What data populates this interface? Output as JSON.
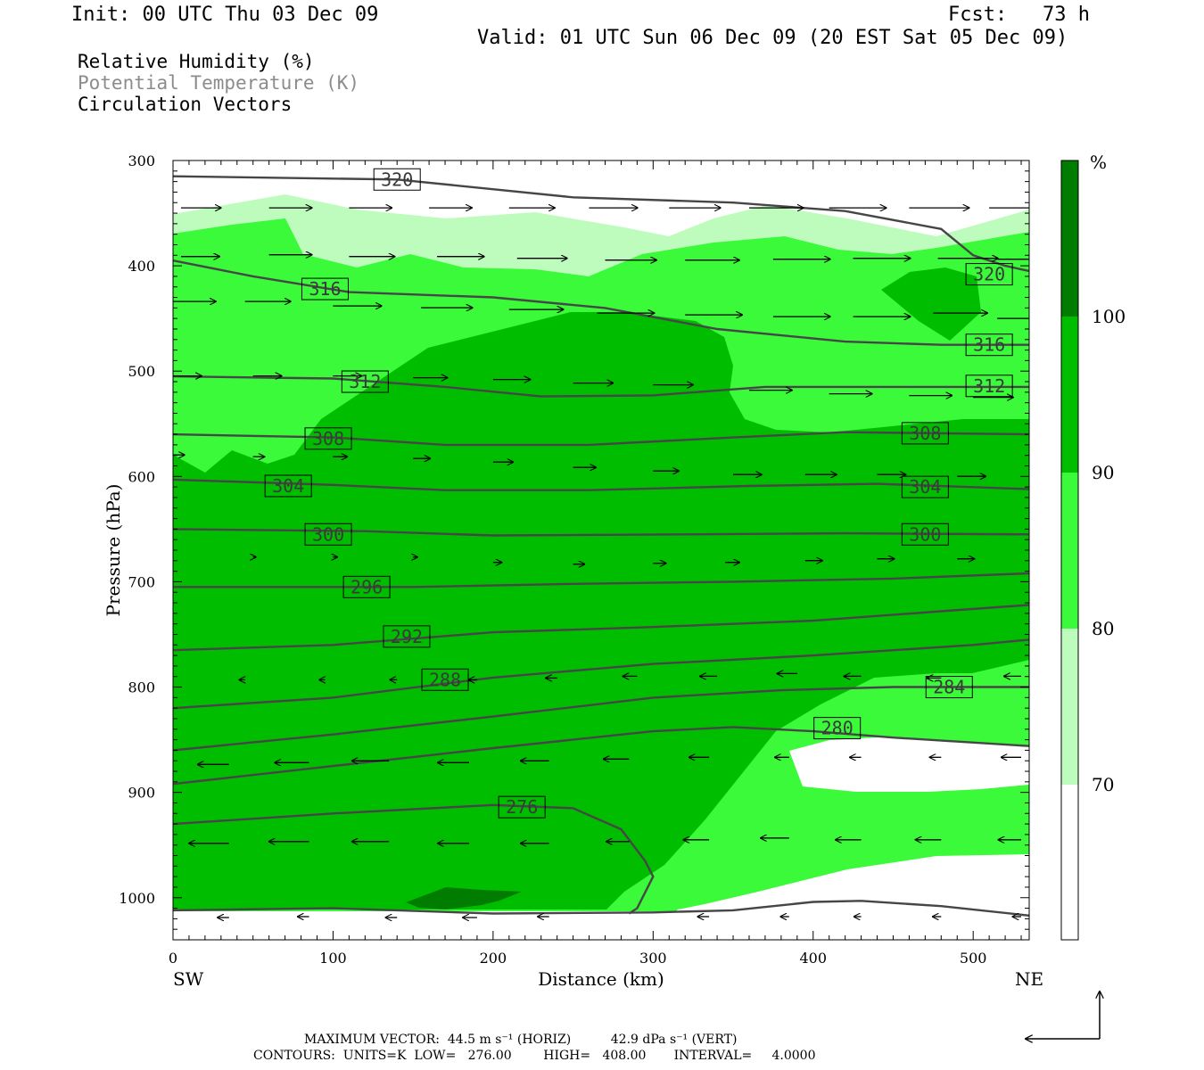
{
  "header": {
    "init": "Init: 00 UTC Thu 03 Dec 09",
    "fcst": "Fcst:   73 h",
    "valid": "Valid: 01 UTC Sun 06 Dec 09 (20 EST Sat 05 Dec 09)"
  },
  "legend": {
    "rh": "Relative Humidity (%)",
    "theta": "Potential Temperature (K)",
    "vectors": "Circulation Vectors"
  },
  "colors": {
    "rh_70_80": "#bdfcbd",
    "rh_80_90": "#3afa3a",
    "rh_90_100": "#00bd00",
    "rh_100": "#007d00",
    "theta_line": "#464646"
  },
  "chart_data": {
    "type": "cross-section",
    "xlabel": "Distance (km)",
    "ylabel": "Pressure (hPa)",
    "x_ticks": [
      "0",
      "100",
      "200",
      "300",
      "400",
      "500"
    ],
    "y_ticks": [
      "300",
      "400",
      "500",
      "600",
      "700",
      "800",
      "900",
      "1000"
    ],
    "xlim": [
      0,
      535
    ],
    "ylim": [
      300,
      1040
    ],
    "end_labels": {
      "left": "SW",
      "right": "NE"
    },
    "colorbar": {
      "unit": "%",
      "ticks": [
        "70",
        "80",
        "90",
        "100"
      ]
    },
    "theta_contours": [
      {
        "label": "320",
        "points": [
          [
            0,
            315
          ],
          [
            140,
            318
          ],
          [
            250,
            335
          ],
          [
            350,
            340
          ],
          [
            420,
            348
          ],
          [
            480,
            365
          ],
          [
            500,
            390
          ],
          [
            520,
            400
          ],
          [
            535,
            405
          ]
        ]
      },
      {
        "label": "316",
        "points": [
          [
            0,
            395
          ],
          [
            50,
            410
          ],
          [
            110,
            425
          ],
          [
            200,
            430
          ],
          [
            270,
            440
          ],
          [
            340,
            460
          ],
          [
            420,
            472
          ],
          [
            480,
            475
          ],
          [
            535,
            475
          ]
        ]
      },
      {
        "label": "312",
        "points": [
          [
            0,
            505
          ],
          [
            100,
            507
          ],
          [
            170,
            515
          ],
          [
            230,
            524
          ],
          [
            300,
            523
          ],
          [
            370,
            515
          ],
          [
            450,
            515
          ],
          [
            535,
            515
          ]
        ]
      },
      {
        "label": "308",
        "points": [
          [
            0,
            560
          ],
          [
            100,
            563
          ],
          [
            170,
            570
          ],
          [
            260,
            570
          ],
          [
            350,
            563
          ],
          [
            420,
            558
          ],
          [
            535,
            560
          ]
        ]
      },
      {
        "label": "304",
        "points": [
          [
            0,
            603
          ],
          [
            100,
            608
          ],
          [
            170,
            613
          ],
          [
            260,
            613
          ],
          [
            360,
            609
          ],
          [
            440,
            607
          ],
          [
            535,
            612
          ]
        ]
      },
      {
        "label": "300",
        "points": [
          [
            0,
            650
          ],
          [
            120,
            652
          ],
          [
            200,
            656
          ],
          [
            320,
            655
          ],
          [
            420,
            654
          ],
          [
            535,
            655
          ]
        ]
      },
      {
        "label": "296",
        "points": [
          [
            0,
            705
          ],
          [
            150,
            705
          ],
          [
            250,
            702
          ],
          [
            350,
            700
          ],
          [
            450,
            697
          ],
          [
            535,
            692
          ]
        ]
      },
      {
        "label": "292",
        "points": [
          [
            0,
            765
          ],
          [
            100,
            760
          ],
          [
            200,
            748
          ],
          [
            300,
            743
          ],
          [
            400,
            737
          ],
          [
            480,
            728
          ],
          [
            535,
            722
          ]
        ]
      },
      {
        "label": "288",
        "points": [
          [
            0,
            820
          ],
          [
            100,
            810
          ],
          [
            200,
            791
          ],
          [
            300,
            778
          ],
          [
            400,
            770
          ],
          [
            500,
            760
          ],
          [
            535,
            755
          ]
        ]
      },
      {
        "label": "284",
        "points": [
          [
            0,
            860
          ],
          [
            100,
            845
          ],
          [
            200,
            828
          ],
          [
            300,
            810
          ],
          [
            380,
            803
          ],
          [
            450,
            800
          ],
          [
            535,
            800
          ]
        ]
      },
      {
        "label": "280",
        "points": [
          [
            0,
            892
          ],
          [
            100,
            875
          ],
          [
            200,
            858
          ],
          [
            300,
            842
          ],
          [
            350,
            838
          ],
          [
            400,
            842
          ],
          [
            450,
            848
          ],
          [
            535,
            856
          ]
        ]
      },
      {
        "label": "276",
        "points": [
          [
            0,
            930
          ],
          [
            100,
            920
          ],
          [
            200,
            912
          ],
          [
            250,
            915
          ],
          [
            280,
            935
          ],
          [
            295,
            965
          ],
          [
            300,
            980
          ],
          [
            290,
            1010
          ],
          [
            285,
            1015
          ]
        ]
      },
      {
        "label": "",
        "points": [
          [
            0,
            1012
          ],
          [
            100,
            1010
          ],
          [
            200,
            1015
          ],
          [
            300,
            1014
          ],
          [
            350,
            1012
          ],
          [
            400,
            1004
          ],
          [
            430,
            1003
          ],
          [
            480,
            1008
          ],
          [
            535,
            1017
          ]
        ]
      }
    ],
    "vectors_note": "MAXIMUM VECTOR:  44.5 m s⁻¹ (HORIZ)          42.9 dPa s⁻¹ (VERT)",
    "contours_note": "CONTOURS:  UNITS=K  LOW=   276.00        HIGH=   408.00       INTERVAL=     4.0000"
  }
}
